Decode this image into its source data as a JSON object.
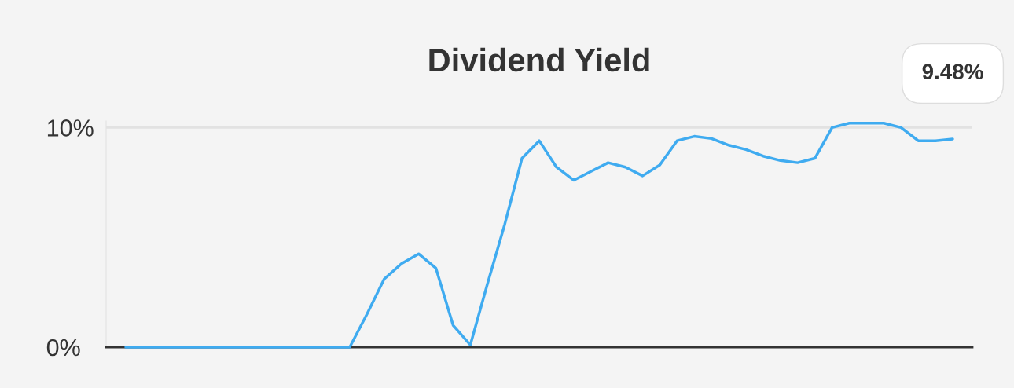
{
  "chart_data": {
    "type": "line",
    "title": "Dividend Yield",
    "categories": [
      null,
      null,
      null,
      null,
      null,
      null,
      null,
      null,
      null,
      null,
      null,
      null,
      null,
      null,
      null,
      null,
      null,
      null,
      null,
      null,
      null,
      null,
      null,
      null,
      null,
      null,
      null,
      null,
      null,
      null,
      null,
      null,
      null,
      null,
      null,
      null,
      null,
      null,
      null,
      null,
      null,
      null,
      null,
      null,
      null,
      null,
      null,
      null,
      null
    ],
    "series": [
      {
        "color": "#3fabf0",
        "values": [
          0,
          0,
          0,
          0,
          0,
          0,
          0,
          0,
          0,
          0,
          0,
          0,
          0,
          0,
          1.5,
          3.1,
          3.8,
          4.25,
          3.6,
          1.0,
          0.1,
          2.9,
          5.6,
          8.6,
          9.4,
          8.2,
          7.6,
          8.0,
          8.4,
          8.2,
          7.8,
          8.3,
          9.4,
          9.6,
          9.5,
          9.2,
          9.0,
          8.7,
          8.5,
          8.4,
          8.6,
          10.0,
          10.2,
          10.2,
          10.2,
          10.0,
          9.4,
          9.4,
          9.48
        ]
      }
    ],
    "ylim": [
      0,
      10.3
    ],
    "yticks": [
      {
        "value": 0,
        "label": "0%"
      },
      {
        "value": 10,
        "label": "10%"
      }
    ],
    "grid": "y",
    "annotations": [
      {
        "text": "9.48%",
        "y": 9.48
      }
    ]
  }
}
